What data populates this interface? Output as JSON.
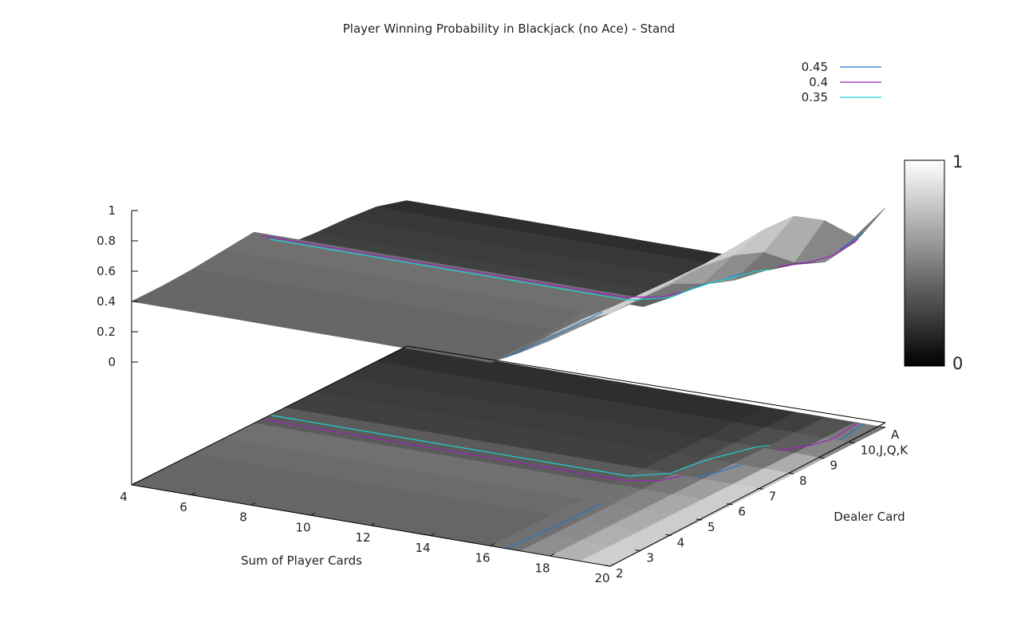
{
  "chart_data": {
    "type": "surface3d",
    "title": "Player Winning Probability in Blackjack (no Ace) - Stand",
    "xlabel": "Sum of Player Cards",
    "ylabel": "Dealer Card",
    "zlabel": "",
    "x_ticks": [
      "4",
      "6",
      "8",
      "10",
      "12",
      "14",
      "16",
      "18",
      "20"
    ],
    "y_ticks": [
      "2",
      "3",
      "4",
      "5",
      "6",
      "7",
      "8",
      "9",
      "10,J,Q,K",
      "A"
    ],
    "z_ticks": [
      "0",
      "0.2",
      "0.4",
      "0.6",
      "0.8",
      "1"
    ],
    "zlim": [
      0,
      1
    ],
    "colorbar": {
      "min_label": "0",
      "max_label": "1",
      "low_color": "#000000",
      "high_color": "#ffffff"
    },
    "contour_levels": [
      {
        "level": "0.45",
        "color": "#1f78d0"
      },
      {
        "level": "0.4",
        "color": "#a020c0"
      },
      {
        "level": "0.35",
        "color": "#20d0d0"
      }
    ],
    "x": [
      4,
      5,
      6,
      7,
      8,
      9,
      10,
      11,
      12,
      13,
      14,
      15,
      16,
      17,
      18,
      19,
      20
    ],
    "y": [
      "2",
      "3",
      "4",
      "5",
      "6",
      "7",
      "8",
      "9",
      "10,J,Q,K",
      "A"
    ],
    "z": [
      [
        0.4,
        0.4,
        0.4,
        0.4,
        0.4,
        0.4,
        0.4,
        0.4,
        0.4,
        0.4,
        0.4,
        0.4,
        0.4,
        0.5,
        0.65,
        0.78,
        0.86
      ],
      [
        0.4,
        0.4,
        0.4,
        0.4,
        0.4,
        0.4,
        0.4,
        0.4,
        0.4,
        0.4,
        0.4,
        0.4,
        0.4,
        0.48,
        0.62,
        0.76,
        0.86
      ],
      [
        0.41,
        0.41,
        0.41,
        0.41,
        0.41,
        0.41,
        0.41,
        0.41,
        0.41,
        0.41,
        0.41,
        0.41,
        0.41,
        0.47,
        0.61,
        0.75,
        0.86
      ],
      [
        0.43,
        0.43,
        0.43,
        0.43,
        0.43,
        0.43,
        0.43,
        0.43,
        0.43,
        0.43,
        0.43,
        0.43,
        0.43,
        0.46,
        0.59,
        0.74,
        0.87
      ],
      [
        0.45,
        0.45,
        0.45,
        0.45,
        0.45,
        0.45,
        0.45,
        0.45,
        0.45,
        0.45,
        0.45,
        0.45,
        0.45,
        0.45,
        0.58,
        0.73,
        0.88
      ],
      [
        0.26,
        0.26,
        0.26,
        0.26,
        0.26,
        0.26,
        0.26,
        0.26,
        0.26,
        0.26,
        0.26,
        0.26,
        0.26,
        0.36,
        0.48,
        0.7,
        0.9
      ],
      [
        0.24,
        0.24,
        0.24,
        0.24,
        0.24,
        0.24,
        0.24,
        0.24,
        0.24,
        0.24,
        0.24,
        0.24,
        0.24,
        0.34,
        0.4,
        0.62,
        0.89
      ],
      [
        0.23,
        0.23,
        0.23,
        0.23,
        0.23,
        0.23,
        0.23,
        0.23,
        0.23,
        0.23,
        0.23,
        0.23,
        0.23,
        0.32,
        0.36,
        0.45,
        0.76
      ],
      [
        0.21,
        0.21,
        0.21,
        0.21,
        0.21,
        0.21,
        0.21,
        0.21,
        0.21,
        0.21,
        0.21,
        0.21,
        0.21,
        0.24,
        0.3,
        0.35,
        0.55
      ],
      [
        0.15,
        0.15,
        0.15,
        0.15,
        0.15,
        0.15,
        0.15,
        0.15,
        0.15,
        0.15,
        0.15,
        0.15,
        0.15,
        0.19,
        0.26,
        0.38,
        0.64
      ]
    ],
    "grid": false,
    "legend_position": "top-right"
  }
}
